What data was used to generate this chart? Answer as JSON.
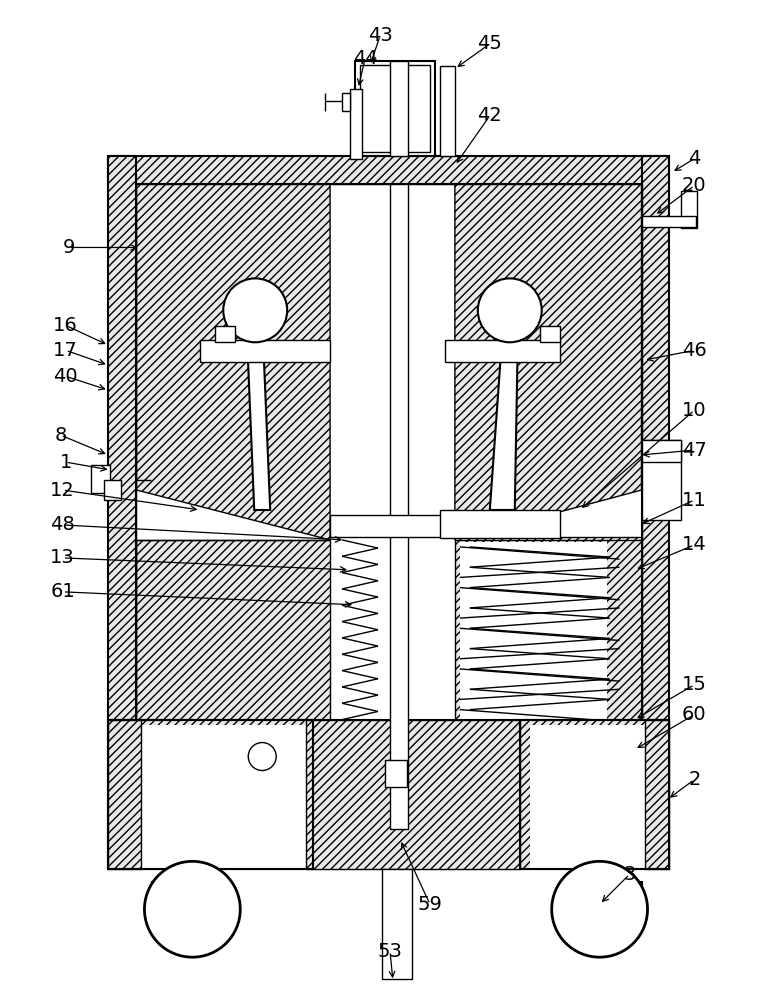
{
  "bg_color": "#ffffff",
  "line_color": "#000000",
  "fig_width": 7.67,
  "fig_height": 10.0,
  "dpi": 100
}
